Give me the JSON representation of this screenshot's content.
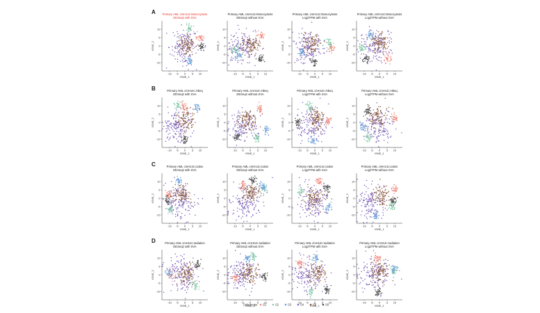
{
  "colors": {
    "S1": "#f0897a",
    "S2": "#82c8a6",
    "S3": "#6a9fd8",
    "S4": "#7b5eb8",
    "S5": "#8b5a3c",
    "S6": "#4a4a4a",
    "title_highlight": "#e8372c",
    "axis": "#333333"
  },
  "legend": {
    "title": "Subgroups",
    "items": [
      "S1",
      "S2",
      "S3",
      "S4",
      "S5",
      "S6"
    ]
  },
  "chart_data": {
    "type": "scatter",
    "xlabel": "tSNE_1",
    "ylabel": "tSNE_2",
    "ticks": {
      "x": [
        "-10",
        "-5",
        "0",
        "5",
        "10"
      ],
      "y": [
        "10",
        "5",
        "0",
        "-5",
        "-10"
      ]
    },
    "xlim": [
      -15,
      15
    ],
    "ylim": [
      -15,
      15
    ],
    "rows": [
      {
        "label": "A",
        "panels": [
          {
            "line1": "Primary AML cmH14c:Monocytosis",
            "line2": "DESeq2 with SVA",
            "highlight": true,
            "seed": 11
          },
          {
            "line1": "Primary AML cmH14c:Monocytosis",
            "line2": "DESeq2 without SVA",
            "highlight": false,
            "seed": 12
          },
          {
            "line1": "Primary AML cmH14c:Monocytosis",
            "line2": "Log2TPM with SVA",
            "highlight": false,
            "seed": 13
          },
          {
            "line1": "Primary AML cmH14c:Monocytosis",
            "line2": "Log2TPM without SVA",
            "highlight": false,
            "seed": 14
          }
        ]
      },
      {
        "label": "B",
        "panels": [
          {
            "line1": "Primary AML cmH14c:Hbeq",
            "line2": "DESeq2 with SVA",
            "highlight": false,
            "seed": 21
          },
          {
            "line1": "Primary AML cmH14c:Hbeq",
            "line2": "DESeq2 without SVA",
            "highlight": false,
            "seed": 22
          },
          {
            "line1": "Primary AML cmH14c:Hbeq",
            "line2": "Log2TPM with SVA",
            "highlight": false,
            "seed": 23
          },
          {
            "line1": "Primary AML cmH14c:Hbeq",
            "line2": "Log2TPM without SVA",
            "highlight": false,
            "seed": 24
          }
        ]
      },
      {
        "label": "C",
        "panels": [
          {
            "line1": "Primary AML cmH14c:cation",
            "line2": "DESeq2 with SVA",
            "highlight": false,
            "seed": 31
          },
          {
            "line1": "Primary AML cmH14c:cation",
            "line2": "DESeq2 without SVA",
            "highlight": false,
            "seed": 32
          },
          {
            "line1": "Primary AML cmH14c:cation",
            "line2": "Log2TPM with SVA",
            "highlight": false,
            "seed": 33
          },
          {
            "line1": "Primary AML cmH14c:cation",
            "line2": "Log2TPM without SVA",
            "highlight": false,
            "seed": 34
          }
        ]
      },
      {
        "label": "D",
        "panels": [
          {
            "line1": "Primary AML cmH14c:radiation",
            "line2": "DESeq2 with SVA",
            "highlight": false,
            "seed": 41
          },
          {
            "line1": "Primary AML cmH14c:radiation",
            "line2": "DESeq2 without SVA",
            "highlight": false,
            "seed": 42
          },
          {
            "line1": "Primary AML cmH14c:radiation",
            "line2": "Log2TPM with SVA",
            "highlight": false,
            "seed": 43
          },
          {
            "line1": "Primary AML cmH14c:radiation",
            "line2": "Log2TPM without SVA",
            "highlight": false,
            "seed": 44
          }
        ]
      }
    ]
  }
}
